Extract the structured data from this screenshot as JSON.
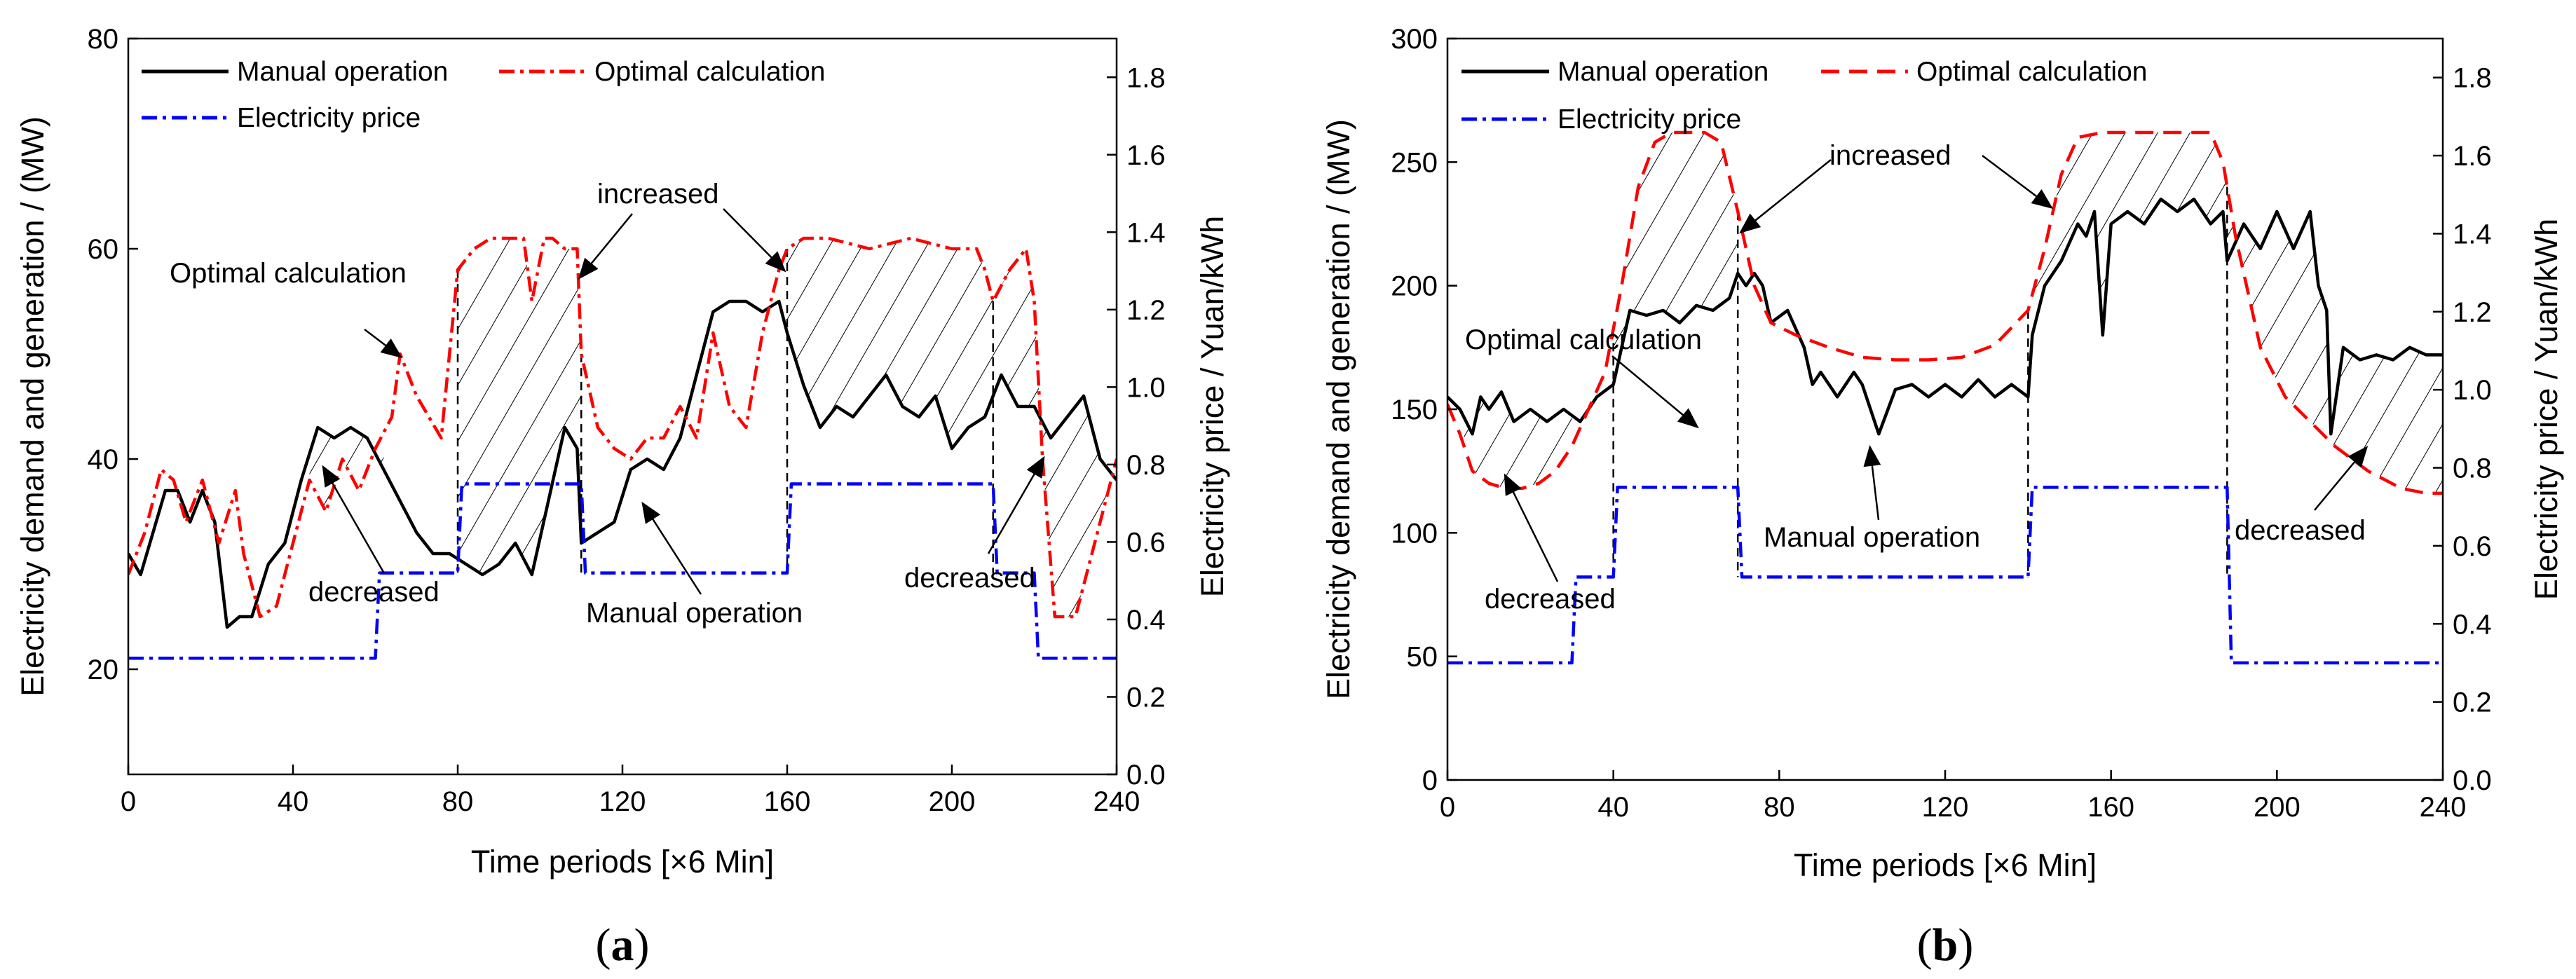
{
  "chart_data": [
    {
      "type": "line",
      "panel_label": "a",
      "xlabel": "Time periods [×6 Min]",
      "ylabel": "Electricity demand and generation / (MW)",
      "y2label": "Electricity price / Yuan/kWh",
      "xlim": [
        0,
        240
      ],
      "ylim": [
        10,
        80
      ],
      "y2lim": [
        0.0,
        1.9
      ],
      "xticks": [
        0,
        40,
        80,
        120,
        160,
        200,
        240
      ],
      "yticks": [
        20,
        40,
        60,
        80
      ],
      "y2ticks": [
        0.0,
        0.2,
        0.4,
        0.6,
        0.8,
        1.0,
        1.2,
        1.4,
        1.6,
        1.8
      ],
      "legend_position": "top-left",
      "series": [
        {
          "name": "Manual operation",
          "axis": "left",
          "color": "#000000",
          "style": "solid",
          "x": [
            0,
            3,
            6,
            9,
            12,
            15,
            18,
            21,
            24,
            27,
            30,
            34,
            38,
            42,
            46,
            50,
            54,
            58,
            62,
            66,
            70,
            74,
            78,
            82,
            86,
            90,
            94,
            98,
            102,
            106,
            109,
            110,
            114,
            118,
            122,
            126,
            130,
            134,
            138,
            142,
            146,
            150,
            154,
            158,
            160,
            164,
            168,
            172,
            176,
            180,
            184,
            188,
            192,
            196,
            200,
            204,
            208,
            212,
            216,
            220,
            224,
            228,
            232,
            236,
            240
          ],
          "y": [
            31,
            29,
            33,
            37,
            37,
            34,
            37,
            34,
            24,
            25,
            25,
            30,
            32,
            38,
            43,
            42,
            43,
            42,
            39,
            36,
            33,
            31,
            31,
            30,
            29,
            30,
            32,
            29,
            36,
            43,
            41,
            32,
            33,
            34,
            39,
            40,
            39,
            42,
            48,
            54,
            55,
            55,
            54,
            55,
            52,
            47,
            43,
            45,
            44,
            46,
            48,
            45,
            44,
            46,
            41,
            43,
            44,
            48,
            45,
            45,
            42,
            44,
            46,
            40,
            38
          ]
        },
        {
          "name": "Optimal calculation",
          "axis": "left",
          "color": "#ff0000",
          "style": "dash-dot",
          "x": [
            0,
            4,
            8,
            11,
            14,
            18,
            22,
            26,
            28,
            32,
            36,
            40,
            44,
            48,
            52,
            56,
            60,
            64,
            66,
            70,
            73,
            76,
            80,
            84,
            88,
            92,
            96,
            98,
            101,
            103,
            106,
            109,
            110,
            114,
            118,
            122,
            126,
            130,
            134,
            138,
            142,
            146,
            150,
            154,
            158,
            160,
            164,
            170,
            180,
            190,
            200,
            206,
            208,
            210,
            214,
            218,
            220,
            222,
            225,
            230,
            240
          ],
          "y": [
            29,
            33,
            39,
            38,
            34,
            38,
            32,
            37,
            31,
            25,
            26,
            32,
            38,
            35,
            40,
            37,
            41,
            44,
            50,
            46,
            44,
            42,
            58,
            60,
            61,
            61,
            61,
            55,
            61,
            61,
            60,
            60,
            50,
            43,
            41,
            40,
            42,
            42,
            45,
            42,
            52,
            45,
            43,
            52,
            58,
            60,
            61,
            61,
            60,
            61,
            60,
            60,
            58,
            55,
            58,
            60,
            55,
            40,
            25,
            25,
            40
          ]
        },
        {
          "name": "Electricity price",
          "axis": "right",
          "color": "#0000ff",
          "style": "dash-dot",
          "x": [
            0,
            60,
            61,
            80,
            81,
            110,
            111,
            160,
            161,
            210,
            211,
            220,
            221,
            240
          ],
          "y": [
            0.3,
            0.3,
            0.52,
            0.52,
            0.75,
            0.75,
            0.52,
            0.52,
            0.75,
            0.75,
            0.52,
            0.52,
            0.3,
            0.3
          ]
        }
      ],
      "annotations": [
        {
          "text": "increased"
        },
        {
          "text": "Optimal calculation"
        },
        {
          "text": "decreased"
        },
        {
          "text": "Manual operation"
        },
        {
          "text": "decreased"
        }
      ]
    },
    {
      "type": "line",
      "panel_label": "b",
      "xlabel": "Time periods [×6 Min]",
      "ylabel": "Electricity demand and generation / (MW)",
      "y2label": "Electricity price / Yuan/kWh",
      "xlim": [
        0,
        240
      ],
      "ylim": [
        0,
        300
      ],
      "y2lim": [
        0.0,
        1.9
      ],
      "xticks": [
        0,
        40,
        80,
        120,
        160,
        200,
        240
      ],
      "yticks": [
        0,
        50,
        100,
        150,
        200,
        250,
        300
      ],
      "y2ticks": [
        0.0,
        0.2,
        0.4,
        0.6,
        0.8,
        1.0,
        1.2,
        1.4,
        1.6,
        1.8
      ],
      "legend_position": "top-left",
      "series": [
        {
          "name": "Manual operation",
          "axis": "left",
          "color": "#000000",
          "style": "solid",
          "x": [
            0,
            3,
            6,
            8,
            10,
            13,
            16,
            20,
            24,
            28,
            32,
            36,
            40,
            44,
            48,
            52,
            56,
            60,
            64,
            68,
            70,
            72,
            74,
            76,
            78,
            82,
            86,
            88,
            90,
            94,
            98,
            100,
            104,
            108,
            112,
            116,
            120,
            124,
            128,
            132,
            136,
            140,
            141,
            144,
            148,
            152,
            154,
            156,
            158,
            160,
            164,
            168,
            172,
            176,
            180,
            184,
            187,
            188,
            192,
            196,
            200,
            204,
            208,
            210,
            212,
            213,
            216,
            220,
            224,
            228,
            232,
            236,
            240
          ],
          "y": [
            155,
            150,
            140,
            155,
            150,
            157,
            145,
            150,
            145,
            150,
            145,
            155,
            160,
            190,
            188,
            190,
            185,
            192,
            190,
            195,
            205,
            200,
            205,
            200,
            185,
            190,
            175,
            160,
            165,
            155,
            165,
            160,
            140,
            158,
            160,
            155,
            160,
            155,
            162,
            155,
            160,
            155,
            180,
            200,
            210,
            225,
            220,
            230,
            180,
            225,
            230,
            225,
            235,
            230,
            235,
            225,
            230,
            210,
            225,
            215,
            230,
            215,
            230,
            200,
            190,
            140,
            175,
            170,
            172,
            170,
            175,
            172,
            172
          ]
        },
        {
          "name": "Optimal calculation",
          "axis": "left",
          "color": "#ff0000",
          "style": "dashed",
          "x": [
            0,
            3,
            6,
            10,
            14,
            18,
            22,
            26,
            30,
            34,
            38,
            42,
            46,
            50,
            54,
            58,
            62,
            66,
            70,
            74,
            78,
            84,
            92,
            100,
            108,
            116,
            124,
            132,
            140,
            144,
            148,
            152,
            158,
            166,
            176,
            184,
            187,
            190,
            196,
            202,
            208,
            214,
            222,
            230,
            236,
            240
          ],
          "y": [
            152,
            140,
            125,
            120,
            118,
            118,
            120,
            125,
            135,
            150,
            165,
            200,
            240,
            258,
            262,
            262,
            262,
            258,
            230,
            200,
            185,
            180,
            175,
            171,
            170,
            170,
            171,
            176,
            190,
            215,
            245,
            260,
            262,
            262,
            262,
            262,
            250,
            220,
            175,
            155,
            145,
            135,
            125,
            118,
            116,
            116
          ]
        },
        {
          "name": "Electricity price",
          "axis": "right",
          "color": "#0000ff",
          "style": "dash-dot",
          "x": [
            0,
            30,
            31,
            40,
            41,
            70,
            71,
            140,
            141,
            188,
            189,
            240
          ],
          "y": [
            0.3,
            0.3,
            0.52,
            0.52,
            0.75,
            0.75,
            0.52,
            0.52,
            0.75,
            0.75,
            0.3,
            0.3
          ]
        }
      ],
      "annotations": [
        {
          "text": "increased"
        },
        {
          "text": "Optimal calculation"
        },
        {
          "text": "decreased"
        },
        {
          "text": "Manual operation"
        },
        {
          "text": "decreased"
        }
      ]
    }
  ]
}
